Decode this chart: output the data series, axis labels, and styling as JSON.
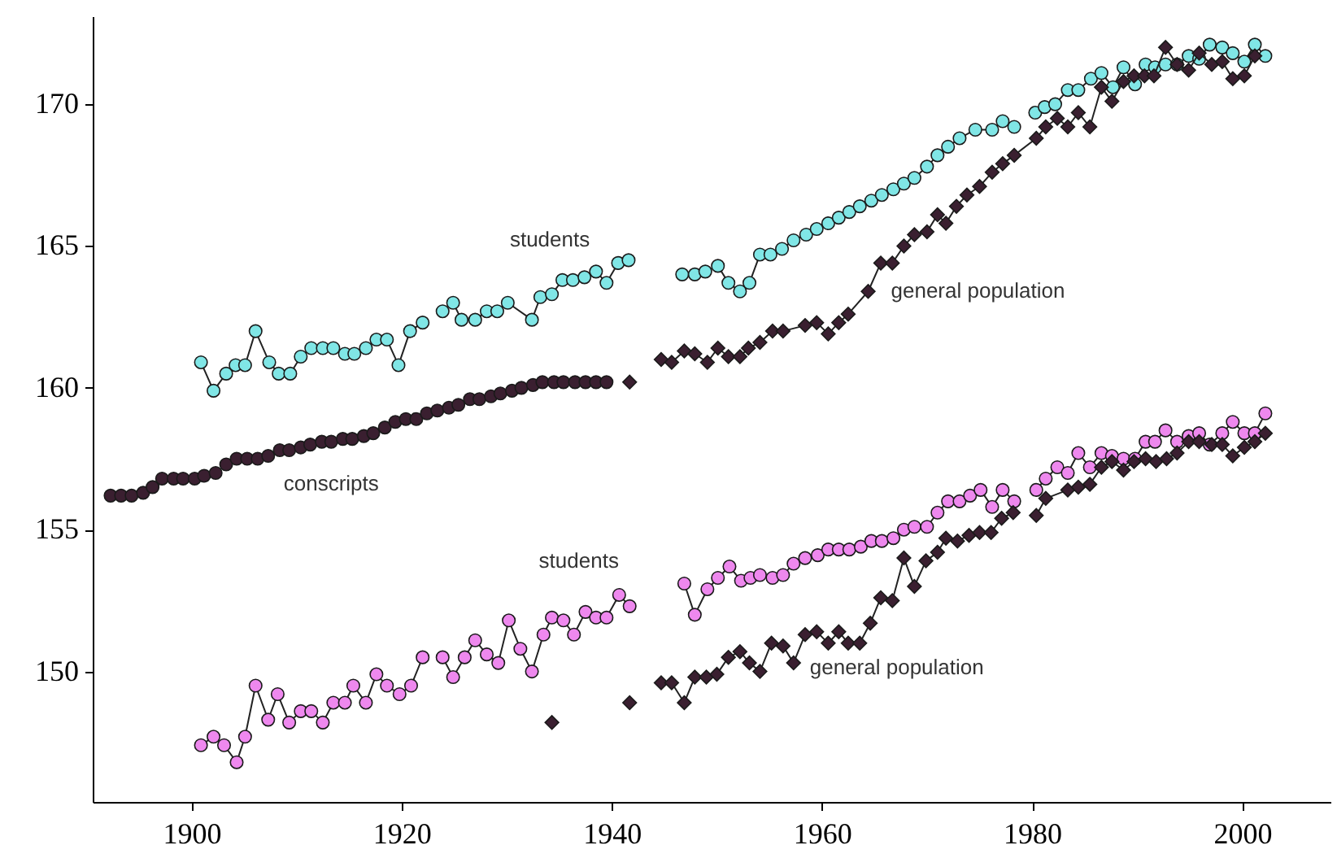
{
  "chart_data": {
    "type": "line",
    "xlim": [
      1890.6,
      2008.4
    ],
    "ylim": [
      145.4,
      173.1
    ],
    "xticks": [
      1900,
      1920,
      1940,
      1960,
      1980,
      2000
    ],
    "yticks": [
      150,
      155,
      160,
      165,
      170
    ],
    "grid": false,
    "line_style": "solid",
    "series": [
      {
        "name": "students",
        "marker": "circle",
        "color": "#80e6e6",
        "x": [
          1900.9,
          1902.1,
          1903.3,
          1904.2,
          1905.1,
          1906.1,
          1907.4,
          1908.3,
          1909.4,
          1910.4,
          1911.4,
          1912.5,
          1913.5,
          1914.6,
          1915.5,
          1916.6,
          1917.6,
          1918.6,
          1919.7,
          1920.8,
          1922.0,
          1923.0,
          1923.9,
          1924.9,
          1925.7,
          1927.0,
          1928.1,
          1929.1,
          1930.1,
          1932.4,
          1933.2,
          1934.3,
          1935.3,
          1936.3,
          1937.4,
          1938.5,
          1939.5,
          1940.6,
          1941.6,
          1944.0,
          1946.7,
          1947.9,
          1948.9,
          1950.1,
          1951.1,
          1952.2,
          1953.1,
          1954.1,
          1955.1,
          1956.2,
          1957.3,
          1958.5,
          1959.5,
          1960.6,
          1961.6,
          1962.6,
          1963.6,
          1964.7,
          1965.7,
          1966.8,
          1967.8,
          1968.8,
          1970.0,
          1971.0,
          1972.0,
          1973.1,
          1974.6,
          1976.2,
          1977.2,
          1978.3,
          1979.3,
          1980.3,
          1981.2,
          1982.2,
          1983.4,
          1984.4,
          1985.6,
          1986.6,
          1987.7,
          1988.7,
          1989.8,
          1990.8,
          1991.7,
          1992.7,
          1993.8,
          1994.9,
          1995.9,
          1996.9,
          1998.1,
          1999.1,
          2000.2,
          2001.2,
          2002.2
        ],
        "values": [
          160.9,
          159.9,
          160.5,
          160.8,
          160.8,
          162.0,
          160.9,
          160.5,
          160.5,
          161.1,
          161.4,
          161.4,
          161.4,
          161.2,
          161.2,
          161.4,
          161.7,
          161.7,
          160.8,
          162.0,
          162.3,
          null,
          162.7,
          163.0,
          162.4,
          162.4,
          162.7,
          162.7,
          163.0,
          162.4,
          163.2,
          163.3,
          163.8,
          163.8,
          163.9,
          164.1,
          163.7,
          164.4,
          164.5,
          null,
          164.0,
          164.0,
          164.1,
          164.3,
          163.7,
          163.4,
          163.7,
          164.7,
          164.7,
          164.9,
          165.2,
          165.4,
          165.6,
          165.8,
          166.0,
          166.2,
          166.4,
          166.6,
          166.8,
          167.0,
          167.2,
          167.4,
          167.8,
          168.2,
          168.5,
          168.8,
          169.1,
          169.1,
          169.4,
          169.2,
          null,
          169.7,
          169.9,
          170.0,
          170.5,
          170.5,
          170.9,
          171.1,
          170.6,
          171.3,
          170.7,
          171.4,
          171.3,
          171.4,
          171.4,
          171.7,
          171.6,
          172.1,
          172.0,
          171.8,
          171.5,
          172.1,
          171.7
        ]
      },
      {
        "name": "conscripts",
        "type": "scatter",
        "marker": "circle",
        "color": "#3a1f30",
        "x": [
          1892.3,
          1893.3,
          1894.3,
          1895.4,
          1896.3,
          1897.2,
          1898.3,
          1899.2,
          1900.3,
          1901.2,
          1902.3,
          1903.3,
          1904.3,
          1905.3,
          1906.3,
          1907.3,
          1908.4,
          1909.3,
          1910.4,
          1911.3,
          1912.4,
          1913.3,
          1914.4,
          1915.3,
          1916.4,
          1917.3,
          1918.4,
          1919.4,
          1920.4,
          1921.4,
          1922.4,
          1923.4,
          1924.5,
          1925.4,
          1926.5,
          1927.4,
          1928.5,
          1929.4,
          1930.5,
          1931.4,
          1932.5,
          1933.4,
          1934.5,
          1935.4,
          1936.5,
          1937.5,
          1938.5,
          1939.5
        ],
        "values": [
          156.2,
          156.2,
          156.2,
          156.3,
          156.5,
          156.8,
          156.8,
          156.8,
          156.8,
          156.9,
          157.0,
          157.3,
          157.5,
          157.5,
          157.5,
          157.6,
          157.8,
          157.8,
          157.9,
          158.0,
          158.1,
          158.1,
          158.2,
          158.2,
          158.3,
          158.4,
          158.6,
          158.8,
          158.9,
          158.9,
          159.1,
          159.2,
          159.3,
          159.4,
          159.6,
          159.6,
          159.7,
          159.8,
          159.9,
          160.0,
          160.1,
          160.2,
          160.2,
          160.2,
          160.2,
          160.2,
          160.2,
          160.2
        ]
      },
      {
        "name": "general population",
        "marker": "diamond",
        "color": "#3a1f30",
        "x": [
          1941.7,
          1943.0,
          1944.7,
          1945.7,
          1946.9,
          1947.9,
          1949.1,
          1950.1,
          1951.1,
          1952.2,
          1953.0,
          1954.1,
          1955.3,
          1956.3,
          1958.4,
          1959.5,
          1960.6,
          1961.6,
          1962.5,
          1964.4,
          1965.6,
          1966.7,
          1967.8,
          1968.8,
          1970.0,
          1971.0,
          1971.8,
          1972.8,
          1973.8,
          1975.0,
          1976.2,
          1977.2,
          1978.3,
          1980.4,
          1981.3,
          1982.4,
          1983.4,
          1984.4,
          1985.5,
          1986.6,
          1987.6,
          1988.7,
          1989.7,
          1990.7,
          1991.6,
          1992.7,
          1993.8,
          1994.9,
          1995.9,
          1997.1,
          1998.1,
          1999.1,
          2000.2,
          2001.2
        ],
        "values": [
          160.2,
          null,
          161.0,
          160.9,
          161.3,
          161.2,
          160.9,
          161.4,
          161.1,
          161.1,
          161.4,
          161.6,
          162.0,
          162.0,
          162.2,
          162.3,
          161.9,
          162.3,
          162.6,
          163.4,
          164.4,
          164.4,
          165.0,
          165.4,
          165.5,
          166.1,
          165.8,
          166.4,
          166.8,
          167.1,
          167.6,
          167.9,
          168.2,
          168.8,
          169.2,
          169.5,
          169.2,
          169.7,
          169.2,
          170.6,
          170.1,
          170.8,
          171.0,
          171.0,
          171.0,
          172.0,
          171.4,
          171.2,
          171.8,
          171.4,
          171.5,
          170.9,
          171.0,
          171.7
        ]
      },
      {
        "name": "students",
        "marker": "circle",
        "color": "#ee88ee",
        "x": [
          1900.9,
          1902.1,
          1903.1,
          1904.3,
          1905.1,
          1906.1,
          1907.3,
          1908.2,
          1909.3,
          1910.4,
          1911.4,
          1912.5,
          1913.5,
          1914.6,
          1915.4,
          1916.6,
          1917.6,
          1918.6,
          1919.8,
          1920.9,
          1922.0,
          1923.0,
          1923.9,
          1924.9,
          1926.0,
          1927.0,
          1928.1,
          1929.2,
          1930.2,
          1931.3,
          1932.4,
          1933.5,
          1934.3,
          1935.4,
          1936.4,
          1937.5,
          1938.5,
          1939.5,
          1940.7,
          1941.7,
          1944.0,
          1946.9,
          1947.9,
          1949.1,
          1950.1,
          1951.2,
          1952.3,
          1953.2,
          1954.1,
          1955.3,
          1956.3,
          1957.3,
          1958.4,
          1959.6,
          1960.6,
          1961.6,
          1962.6,
          1963.7,
          1964.7,
          1965.7,
          1966.8,
          1967.8,
          1968.8,
          1970.0,
          1971.0,
          1972.0,
          1973.1,
          1974.1,
          1975.1,
          1976.2,
          1977.2,
          1978.3,
          1979.3,
          1980.4,
          1981.3,
          1982.4,
          1983.4,
          1984.4,
          1985.5,
          1986.6,
          1987.6,
          1988.7,
          1989.8,
          1990.8,
          1991.7,
          1992.7,
          1993.8,
          1994.9,
          1995.9,
          1996.9,
          1998.1,
          1999.1,
          2000.2,
          2001.2,
          2002.2
        ],
        "values": [
          147.4,
          147.7,
          147.4,
          146.8,
          147.7,
          149.5,
          148.3,
          149.2,
          148.2,
          148.6,
          148.6,
          148.2,
          148.9,
          148.9,
          149.5,
          148.9,
          149.9,
          149.5,
          149.2,
          149.5,
          150.5,
          null,
          150.5,
          149.8,
          150.5,
          151.1,
          150.6,
          150.3,
          151.8,
          150.8,
          150.0,
          151.3,
          151.9,
          151.8,
          151.3,
          152.1,
          151.9,
          151.9,
          152.7,
          152.3,
          null,
          153.1,
          152.0,
          152.9,
          153.3,
          153.7,
          153.2,
          153.3,
          153.4,
          153.3,
          153.4,
          153.8,
          154.0,
          154.1,
          154.3,
          154.3,
          154.3,
          154.4,
          154.6,
          154.6,
          154.7,
          155.0,
          155.1,
          155.1,
          155.6,
          156.0,
          156.0,
          156.2,
          156.4,
          155.8,
          156.4,
          156.0,
          null,
          156.4,
          156.8,
          157.2,
          157.0,
          157.7,
          157.2,
          157.7,
          157.6,
          157.5,
          157.5,
          158.1,
          158.1,
          158.5,
          158.1,
          158.3,
          158.4,
          158.0,
          158.4,
          158.8,
          158.4,
          158.4,
          159.1
        ]
      },
      {
        "name": "general population",
        "marker": "diamond",
        "color": "#3a1f30",
        "x": [
          1934.3,
          1938.0,
          1941.7,
          1943.0,
          1944.7,
          1945.7,
          1946.9,
          1947.9,
          1949.0,
          1950.0,
          1951.1,
          1952.2,
          1953.1,
          1954.1,
          1955.2,
          1956.3,
          1957.3,
          1958.4,
          1959.5,
          1960.6,
          1961.6,
          1962.5,
          1963.6,
          1964.6,
          1965.6,
          1966.7,
          1967.8,
          1968.8,
          1969.9,
          1971.0,
          1971.8,
          1972.9,
          1974.0,
          1975.0,
          1976.1,
          1977.1,
          1978.2,
          1979.3,
          1980.4,
          1981.3,
          1983.4,
          1984.4,
          1985.5,
          1986.6,
          1987.6,
          1988.7,
          1989.7,
          1990.8,
          1991.8,
          1992.8,
          1993.8,
          1994.9,
          1995.9,
          1997.1,
          1998.1,
          1999.1,
          2000.2,
          2001.2,
          2002.2
        ],
        "values": [
          148.2,
          null,
          148.9,
          null,
          149.6,
          149.6,
          148.9,
          149.8,
          149.8,
          149.9,
          150.5,
          150.7,
          150.3,
          150.0,
          151.0,
          150.9,
          150.3,
          151.3,
          151.4,
          151.0,
          151.4,
          151.0,
          151.0,
          151.7,
          152.6,
          152.5,
          154.0,
          153.0,
          153.9,
          154.2,
          154.7,
          154.6,
          154.8,
          154.9,
          154.9,
          155.4,
          155.6,
          null,
          155.5,
          156.1,
          156.4,
          156.5,
          156.6,
          157.2,
          157.4,
          157.1,
          157.4,
          157.5,
          157.4,
          157.5,
          157.7,
          158.1,
          158.1,
          158.0,
          158.0,
          157.6,
          157.9,
          158.1,
          158.4
        ]
      }
    ]
  }
}
